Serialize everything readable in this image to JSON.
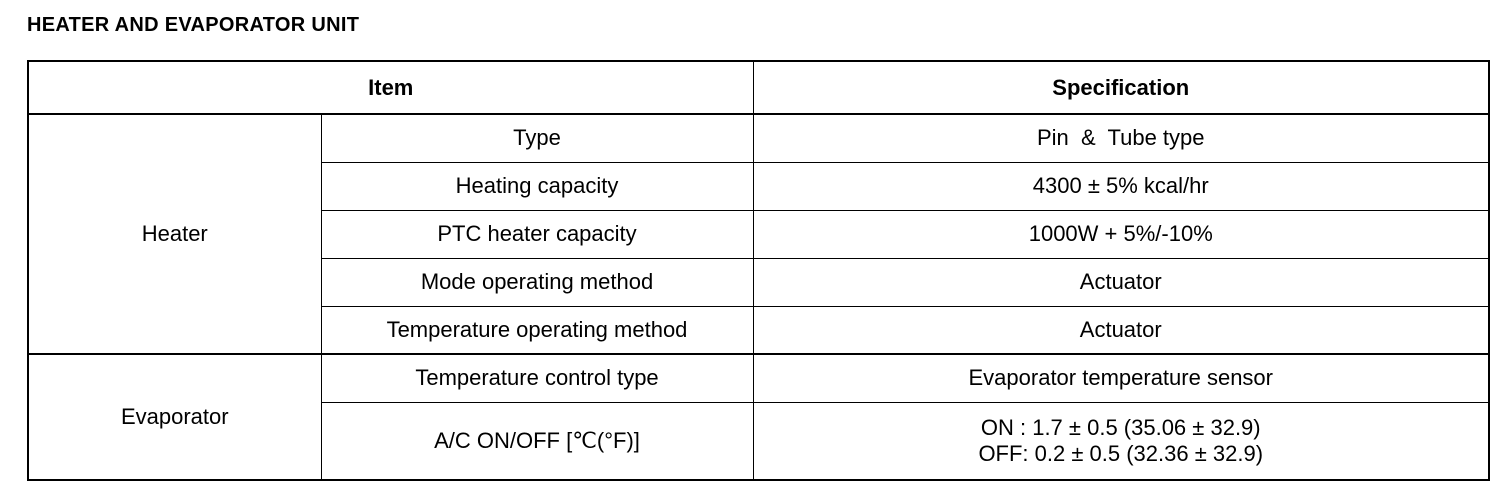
{
  "title": "HEATER AND EVAPORATOR UNIT",
  "table": {
    "headers": [
      "Item",
      "Specification"
    ],
    "groups": [
      {
        "name": "Heater",
        "rows": [
          {
            "item": "Type",
            "spec": "Pin  &  Tube type"
          },
          {
            "item": "Heating capacity",
            "spec": "4300 ± 5% kcal/hr"
          },
          {
            "item": "PTC heater capacity",
            "spec": "1000W + 5%/-10%"
          },
          {
            "item": "Mode operating method",
            "spec": "Actuator"
          },
          {
            "item": "Temperature operating method",
            "spec": "Actuator"
          }
        ]
      },
      {
        "name": "Evaporator",
        "rows": [
          {
            "item": "Temperature control type",
            "spec": "Evaporator temperature sensor"
          },
          {
            "item": "A/C ON/OFF [℃(°F)]",
            "spec": "ON : 1.7 ± 0.5 (35.06 ± 32.9)",
            "spec2": "OFF: 0.2 ± 0.5 (32.36 ± 32.9)"
          }
        ]
      }
    ]
  }
}
